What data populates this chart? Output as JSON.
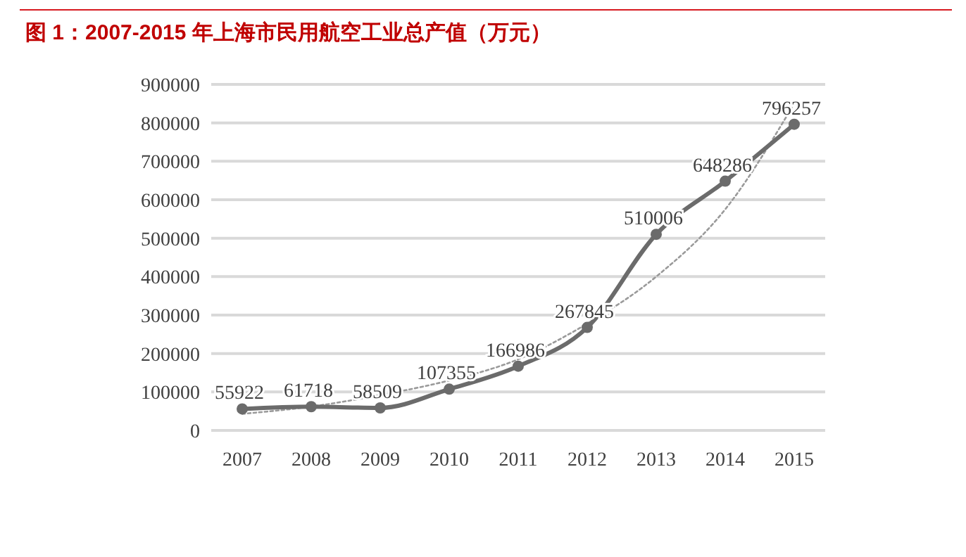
{
  "chart_data": {
    "type": "line",
    "title": "图 1：2007-2015 年上海市民用航空工业总产值（万元）",
    "categories": [
      "2007",
      "2008",
      "2009",
      "2010",
      "2011",
      "2012",
      "2013",
      "2014",
      "2015"
    ],
    "series": [
      {
        "color": "#6b6b6b",
        "values": [
          55922,
          61718,
          58509,
          107355,
          166986,
          267845,
          510006,
          648286,
          796257
        ],
        "marker": "circle",
        "line_style": "solid",
        "data_labels": true
      },
      {
        "type": "line",
        "color": "#9a9a9a",
        "values": [
          43000,
          62000,
          92000,
          130000,
          185000,
          278000,
          400000,
          575000,
          850000
        ],
        "marker": "none",
        "line_style": "dotted"
      }
    ],
    "ylim": [
      0,
      900000
    ],
    "yticks": [
      0,
      100000,
      200000,
      300000,
      400000,
      500000,
      600000,
      700000,
      800000,
      900000
    ],
    "grid": "y"
  }
}
